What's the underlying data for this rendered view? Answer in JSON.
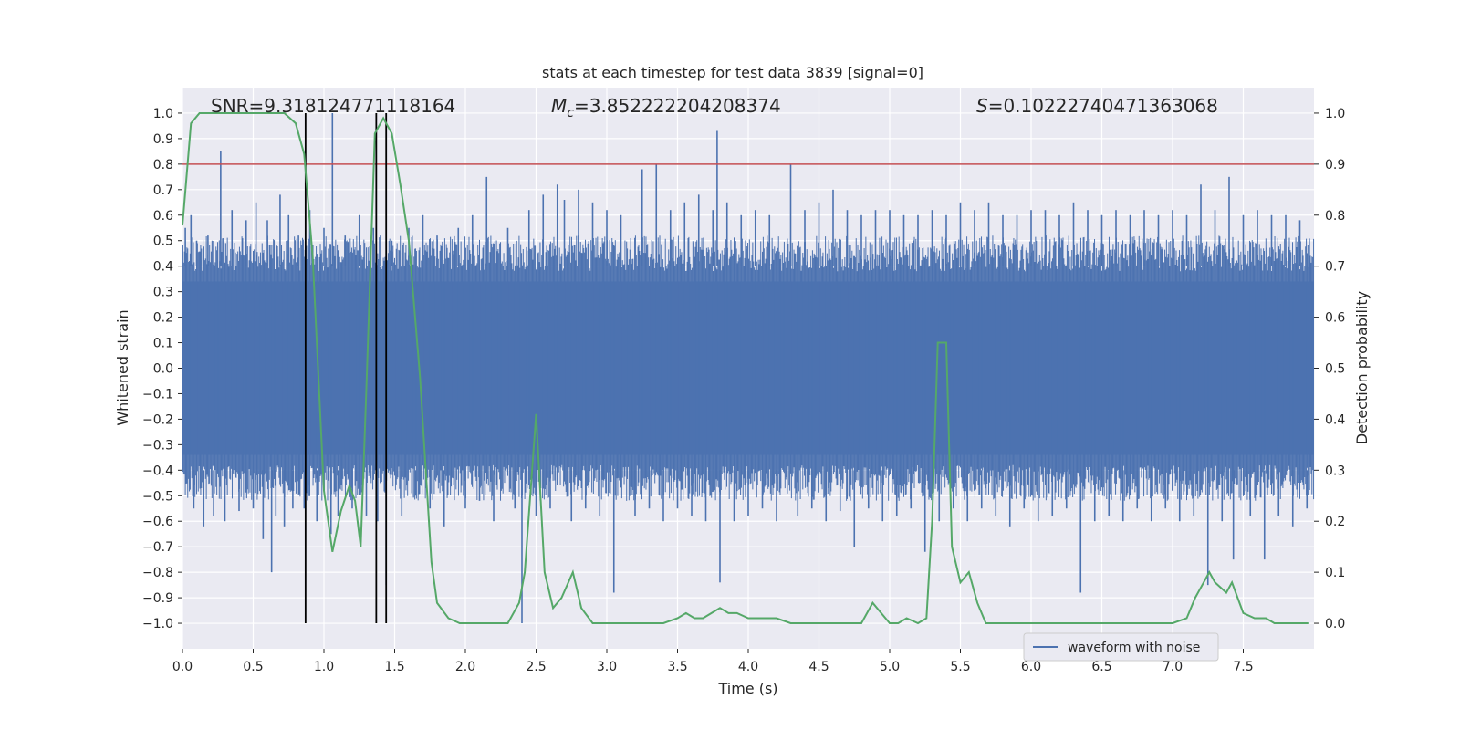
{
  "chart_data": {
    "type": "line",
    "title": "stats at each timestep for test data 3839 [signal=0]",
    "xlabel": "Time (s)",
    "ylabel": "Whitened strain",
    "y2label": "Detection probability",
    "xlim": [
      0.0,
      8.0
    ],
    "ylim": [
      -1.1,
      1.1
    ],
    "y2lim": [
      -0.05,
      1.05
    ],
    "xticks": [
      0.0,
      0.5,
      1.0,
      1.5,
      2.0,
      2.5,
      3.0,
      3.5,
      4.0,
      4.5,
      5.0,
      5.5,
      6.0,
      6.5,
      7.0,
      7.5
    ],
    "yticks": [
      -1.0,
      -0.9,
      -0.8,
      -0.7,
      -0.6,
      -0.5,
      -0.4,
      -0.3,
      -0.2,
      -0.1,
      0.0,
      0.1,
      0.2,
      0.3,
      0.4,
      0.5,
      0.6,
      0.7,
      0.8,
      0.9,
      1.0
    ],
    "y2ticks": [
      0.0,
      0.1,
      0.2,
      0.3,
      0.4,
      0.5,
      0.6,
      0.7,
      0.8,
      0.9,
      1.0
    ],
    "grid": true,
    "legend_placement": "lower-right",
    "annotations": {
      "snr": "SNR=9.318124771118164",
      "mc_symbol": "M",
      "mc_sub": "c",
      "mc_value": "=3.852222204208374",
      "s_symbol": "S",
      "s_value": "=0.10222740471363068"
    },
    "series": [
      {
        "name": "waveform with noise",
        "axis": "left",
        "color": "#4c72b0",
        "core_range": [
          -0.4,
          0.4
        ],
        "spikes": [
          [
            0.02,
            0.55
          ],
          [
            0.06,
            0.6
          ],
          [
            0.08,
            -0.55
          ],
          [
            0.1,
            0.5
          ],
          [
            0.15,
            -0.62
          ],
          [
            0.18,
            0.52
          ],
          [
            0.22,
            -0.58
          ],
          [
            0.27,
            0.85
          ],
          [
            0.3,
            -0.6
          ],
          [
            0.35,
            0.62
          ],
          [
            0.4,
            -0.56
          ],
          [
            0.45,
            0.58
          ],
          [
            0.5,
            -0.55
          ],
          [
            0.52,
            0.65
          ],
          [
            0.57,
            -0.67
          ],
          [
            0.6,
            0.58
          ],
          [
            0.63,
            -0.8
          ],
          [
            0.66,
            -0.58
          ],
          [
            0.69,
            0.68
          ],
          [
            0.72,
            -0.62
          ],
          [
            0.75,
            0.6
          ],
          [
            0.78,
            -0.55
          ],
          [
            0.82,
            0.52
          ],
          [
            0.86,
            -0.55
          ],
          [
            0.9,
            0.62
          ],
          [
            0.95,
            -0.6
          ],
          [
            1.0,
            0.55
          ],
          [
            1.05,
            -0.65
          ],
          [
            1.06,
            1.0
          ],
          [
            1.1,
            -0.58
          ],
          [
            1.15,
            0.52
          ],
          [
            1.2,
            -0.55
          ],
          [
            1.25,
            0.6
          ],
          [
            1.3,
            -0.58
          ],
          [
            1.35,
            0.55
          ],
          [
            1.38,
            -0.6
          ],
          [
            1.4,
            0.52
          ],
          [
            1.44,
            -0.85
          ],
          [
            1.48,
            0.5
          ],
          [
            1.55,
            -0.58
          ],
          [
            1.6,
            0.55
          ],
          [
            1.65,
            -0.5
          ],
          [
            1.7,
            0.6
          ],
          [
            1.75,
            -0.55
          ],
          [
            1.8,
            0.52
          ],
          [
            1.85,
            -0.62
          ],
          [
            1.95,
            0.55
          ],
          [
            2.0,
            -0.55
          ],
          [
            2.05,
            0.6
          ],
          [
            2.1,
            -0.52
          ],
          [
            2.15,
            0.75
          ],
          [
            2.2,
            -0.6
          ],
          [
            2.3,
            0.55
          ],
          [
            2.35,
            -0.55
          ],
          [
            2.4,
            -1.0
          ],
          [
            2.45,
            0.62
          ],
          [
            2.5,
            -0.58
          ],
          [
            2.55,
            0.68
          ],
          [
            2.6,
            -0.55
          ],
          [
            2.65,
            0.72
          ],
          [
            2.7,
            0.66
          ],
          [
            2.75,
            -0.6
          ],
          [
            2.8,
            0.7
          ],
          [
            2.85,
            -0.55
          ],
          [
            2.9,
            0.65
          ],
          [
            2.95,
            -0.58
          ],
          [
            3.0,
            0.62
          ],
          [
            3.05,
            -0.88
          ],
          [
            3.1,
            0.6
          ],
          [
            3.2,
            -0.58
          ],
          [
            3.25,
            0.78
          ],
          [
            3.3,
            -0.55
          ],
          [
            3.35,
            0.8
          ],
          [
            3.4,
            -0.6
          ],
          [
            3.45,
            0.62
          ],
          [
            3.5,
            -0.55
          ],
          [
            3.55,
            0.65
          ],
          [
            3.6,
            -0.58
          ],
          [
            3.65,
            0.68
          ],
          [
            3.7,
            -0.6
          ],
          [
            3.75,
            0.62
          ],
          [
            3.78,
            0.93
          ],
          [
            3.8,
            -0.84
          ],
          [
            3.85,
            0.65
          ],
          [
            3.9,
            -0.6
          ],
          [
            3.95,
            0.6
          ],
          [
            4.0,
            -0.58
          ],
          [
            4.05,
            0.62
          ],
          [
            4.1,
            -0.55
          ],
          [
            4.15,
            0.6
          ],
          [
            4.2,
            -0.6
          ],
          [
            4.3,
            0.8
          ],
          [
            4.35,
            -0.58
          ],
          [
            4.4,
            0.62
          ],
          [
            4.45,
            -0.55
          ],
          [
            4.5,
            0.65
          ],
          [
            4.55,
            -0.6
          ],
          [
            4.6,
            0.7
          ],
          [
            4.65,
            -0.56
          ],
          [
            4.7,
            0.62
          ],
          [
            4.75,
            -0.7
          ],
          [
            4.8,
            0.6
          ],
          [
            4.85,
            -0.55
          ],
          [
            4.9,
            0.62
          ],
          [
            4.95,
            -0.6
          ],
          [
            5.0,
            0.62
          ],
          [
            5.05,
            -0.58
          ],
          [
            5.1,
            0.6
          ],
          [
            5.15,
            -0.55
          ],
          [
            5.2,
            0.6
          ],
          [
            5.25,
            -0.72
          ],
          [
            5.3,
            0.62
          ],
          [
            5.35,
            -0.6
          ],
          [
            5.4,
            0.6
          ],
          [
            5.45,
            -0.55
          ],
          [
            5.5,
            0.65
          ],
          [
            5.55,
            -0.6
          ],
          [
            5.6,
            0.62
          ],
          [
            5.65,
            -0.55
          ],
          [
            5.7,
            0.65
          ],
          [
            5.75,
            -0.58
          ],
          [
            5.8,
            0.6
          ],
          [
            5.85,
            -0.62
          ],
          [
            5.9,
            0.6
          ],
          [
            5.95,
            -0.55
          ],
          [
            6.0,
            0.62
          ],
          [
            6.05,
            -0.6
          ],
          [
            6.1,
            0.62
          ],
          [
            6.15,
            -0.58
          ],
          [
            6.2,
            0.6
          ],
          [
            6.25,
            -0.55
          ],
          [
            6.3,
            0.65
          ],
          [
            6.35,
            -0.88
          ],
          [
            6.4,
            0.62
          ],
          [
            6.45,
            -0.6
          ],
          [
            6.5,
            0.6
          ],
          [
            6.55,
            -0.58
          ],
          [
            6.6,
            0.62
          ],
          [
            6.65,
            -0.6
          ],
          [
            6.7,
            0.6
          ],
          [
            6.75,
            -0.55
          ],
          [
            6.8,
            0.62
          ],
          [
            6.85,
            -0.6
          ],
          [
            6.9,
            0.6
          ],
          [
            6.95,
            -0.55
          ],
          [
            7.0,
            0.62
          ],
          [
            7.05,
            -0.6
          ],
          [
            7.1,
            0.6
          ],
          [
            7.15,
            -0.58
          ],
          [
            7.2,
            0.72
          ],
          [
            7.25,
            -0.85
          ],
          [
            7.3,
            0.62
          ],
          [
            7.35,
            -0.6
          ],
          [
            7.4,
            0.75
          ],
          [
            7.43,
            -0.75
          ],
          [
            7.5,
            0.6
          ],
          [
            7.55,
            -0.58
          ],
          [
            7.6,
            0.62
          ],
          [
            7.65,
            -0.75
          ],
          [
            7.7,
            0.6
          ],
          [
            7.75,
            -0.58
          ],
          [
            7.8,
            0.6
          ],
          [
            7.85,
            -0.62
          ],
          [
            7.9,
            0.58
          ],
          [
            7.95,
            -0.55
          ]
        ]
      },
      {
        "name": "",
        "axis": "right",
        "color": "#55a868",
        "x": [
          0.0,
          0.06,
          0.12,
          0.18,
          0.3,
          0.48,
          0.6,
          0.72,
          0.8,
          0.86,
          0.92,
          1.0,
          1.06,
          1.12,
          1.18,
          1.22,
          1.26,
          1.3,
          1.36,
          1.42,
          1.48,
          1.54,
          1.6,
          1.68,
          1.76,
          1.8,
          1.88,
          1.96,
          2.04,
          2.12,
          2.2,
          2.3,
          2.38,
          2.42,
          2.5,
          2.56,
          2.62,
          2.68,
          2.76,
          2.82,
          2.9,
          3.0,
          3.1,
          3.2,
          3.3,
          3.4,
          3.5,
          3.56,
          3.62,
          3.68,
          3.74,
          3.8,
          3.86,
          3.92,
          4.0,
          4.1,
          4.2,
          4.3,
          4.4,
          4.5,
          4.6,
          4.7,
          4.8,
          4.88,
          4.94,
          5.0,
          5.06,
          5.12,
          5.2,
          5.26,
          5.3,
          5.34,
          5.4,
          5.44,
          5.5,
          5.56,
          5.62,
          5.68,
          5.76,
          5.9,
          6.1,
          6.3,
          6.5,
          6.7,
          6.9,
          7.0,
          7.1,
          7.16,
          7.22,
          7.26,
          7.3,
          7.34,
          7.38,
          7.42,
          7.46,
          7.5,
          7.58,
          7.66,
          7.72,
          7.8,
          7.96
        ],
        "values": [
          0.78,
          0.98,
          1.0,
          1.0,
          1.0,
          1.0,
          1.0,
          1.0,
          0.98,
          0.92,
          0.72,
          0.26,
          0.14,
          0.22,
          0.27,
          0.24,
          0.15,
          0.46,
          0.96,
          0.99,
          0.96,
          0.86,
          0.75,
          0.48,
          0.12,
          0.04,
          0.01,
          0.0,
          0.0,
          0.0,
          0.0,
          0.0,
          0.04,
          0.1,
          0.41,
          0.1,
          0.03,
          0.05,
          0.1,
          0.03,
          0.0,
          0.0,
          0.0,
          0.0,
          0.0,
          0.0,
          0.01,
          0.02,
          0.01,
          0.01,
          0.02,
          0.03,
          0.02,
          0.02,
          0.01,
          0.01,
          0.01,
          0.0,
          0.0,
          0.0,
          0.0,
          0.0,
          0.0,
          0.04,
          0.02,
          0.0,
          0.0,
          0.01,
          0.0,
          0.01,
          0.2,
          0.55,
          0.55,
          0.15,
          0.08,
          0.1,
          0.04,
          0.0,
          0.0,
          0.0,
          0.0,
          0.0,
          0.0,
          0.0,
          0.0,
          0.0,
          0.01,
          0.05,
          0.08,
          0.1,
          0.08,
          0.07,
          0.06,
          0.08,
          0.05,
          0.02,
          0.01,
          0.01,
          0.0,
          0.0,
          0.0
        ]
      }
    ],
    "threshold_line": {
      "axis": "left",
      "y": 0.8,
      "color": "#c44e52"
    },
    "vertical_lines": {
      "x": [
        0.87,
        1.37,
        1.44
      ],
      "ymin": -1.0,
      "ymax": 1.0,
      "color": "#000000"
    }
  }
}
